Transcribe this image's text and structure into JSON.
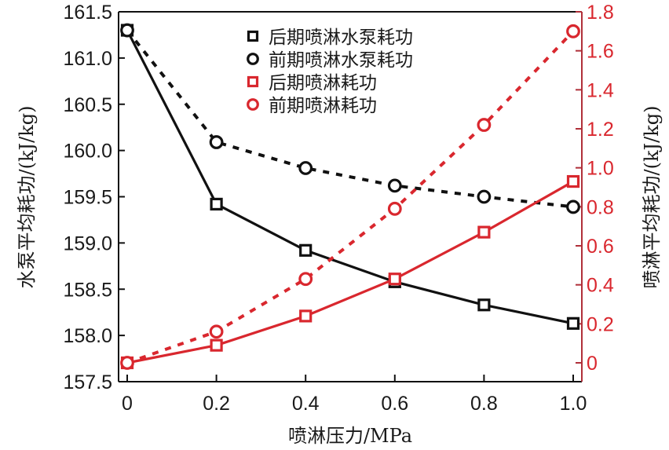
{
  "chart_data": {
    "type": "line",
    "title": "",
    "xlabel": "喷淋压力/MPa",
    "ylabel_left": "水泵平均耗功/(kJ/kg)",
    "ylabel_right": "喷淋平均耗功/(kJ/kg)",
    "x": [
      0,
      0.2,
      0.4,
      0.6,
      0.8,
      1.0
    ],
    "x_tick_labels": [
      "0",
      "0.2",
      "0.4",
      "0.6",
      "0.8",
      "1.0"
    ],
    "xlim": [
      -0.02,
      1.02
    ],
    "ylim_left": [
      157.5,
      161.5
    ],
    "y_left_ticks": [
      "157.5",
      "158.0",
      "158.5",
      "159.0",
      "159.5",
      "160.0",
      "160.5",
      "161.0",
      "161.5"
    ],
    "ylim_right": [
      -0.1,
      1.8
    ],
    "y_right_ticks": [
      "0",
      "0.2",
      "0.4",
      "0.6",
      "0.8",
      "1.0",
      "1.2",
      "1.4",
      "1.6",
      "1.8"
    ],
    "grid": false,
    "legend_position": "top-center",
    "colors": {
      "black": "#111111",
      "red": "#d9272e",
      "right_axis": "#b0303a"
    },
    "series": [
      {
        "name": "后期喷淋水泵耗功",
        "axis": "left",
        "marker": "square",
        "line": "solid",
        "color": "black",
        "values": [
          161.3,
          159.42,
          158.92,
          158.58,
          158.33,
          158.13
        ]
      },
      {
        "name": "前期喷淋水泵耗功",
        "axis": "left",
        "marker": "circle",
        "line": "dotted",
        "color": "black",
        "values": [
          161.3,
          160.09,
          159.81,
          159.62,
          159.5,
          159.39
        ]
      },
      {
        "name": "后期喷淋耗功",
        "axis": "right",
        "marker": "square",
        "line": "solid",
        "color": "red",
        "values": [
          0,
          0.09,
          0.24,
          0.43,
          0.67,
          0.93
        ]
      },
      {
        "name": "前期喷淋耗功",
        "axis": "right",
        "marker": "circle",
        "line": "dotted",
        "color": "red",
        "values": [
          0,
          0.16,
          0.43,
          0.79,
          1.22,
          1.7
        ]
      }
    ]
  }
}
